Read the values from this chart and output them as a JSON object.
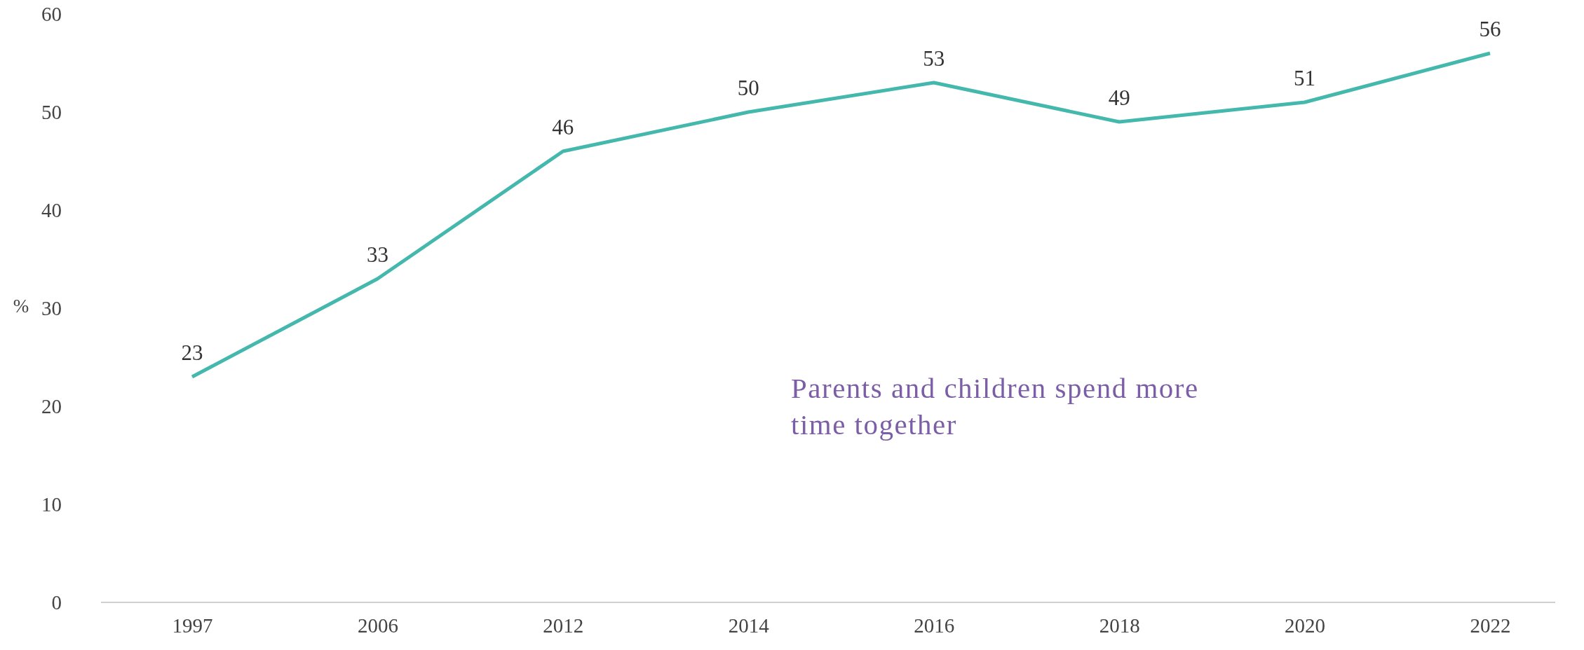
{
  "chart_data": {
    "type": "line",
    "ylabel": "%",
    "categories": [
      "1997",
      "2006",
      "2012",
      "2014",
      "2016",
      "2018",
      "2020",
      "2022"
    ],
    "series": [
      {
        "color": "#45b8ad",
        "values": [
          23,
          33,
          46,
          50,
          53,
          49,
          51,
          56
        ]
      }
    ],
    "ylim": [
      0,
      60
    ],
    "yticks": [
      0,
      10,
      20,
      30,
      40,
      50,
      60
    ],
    "grid": false,
    "marker": "none",
    "line_style": "solid",
    "data_labels": true,
    "annotations": [
      "Parents and children spend more time together"
    ]
  }
}
